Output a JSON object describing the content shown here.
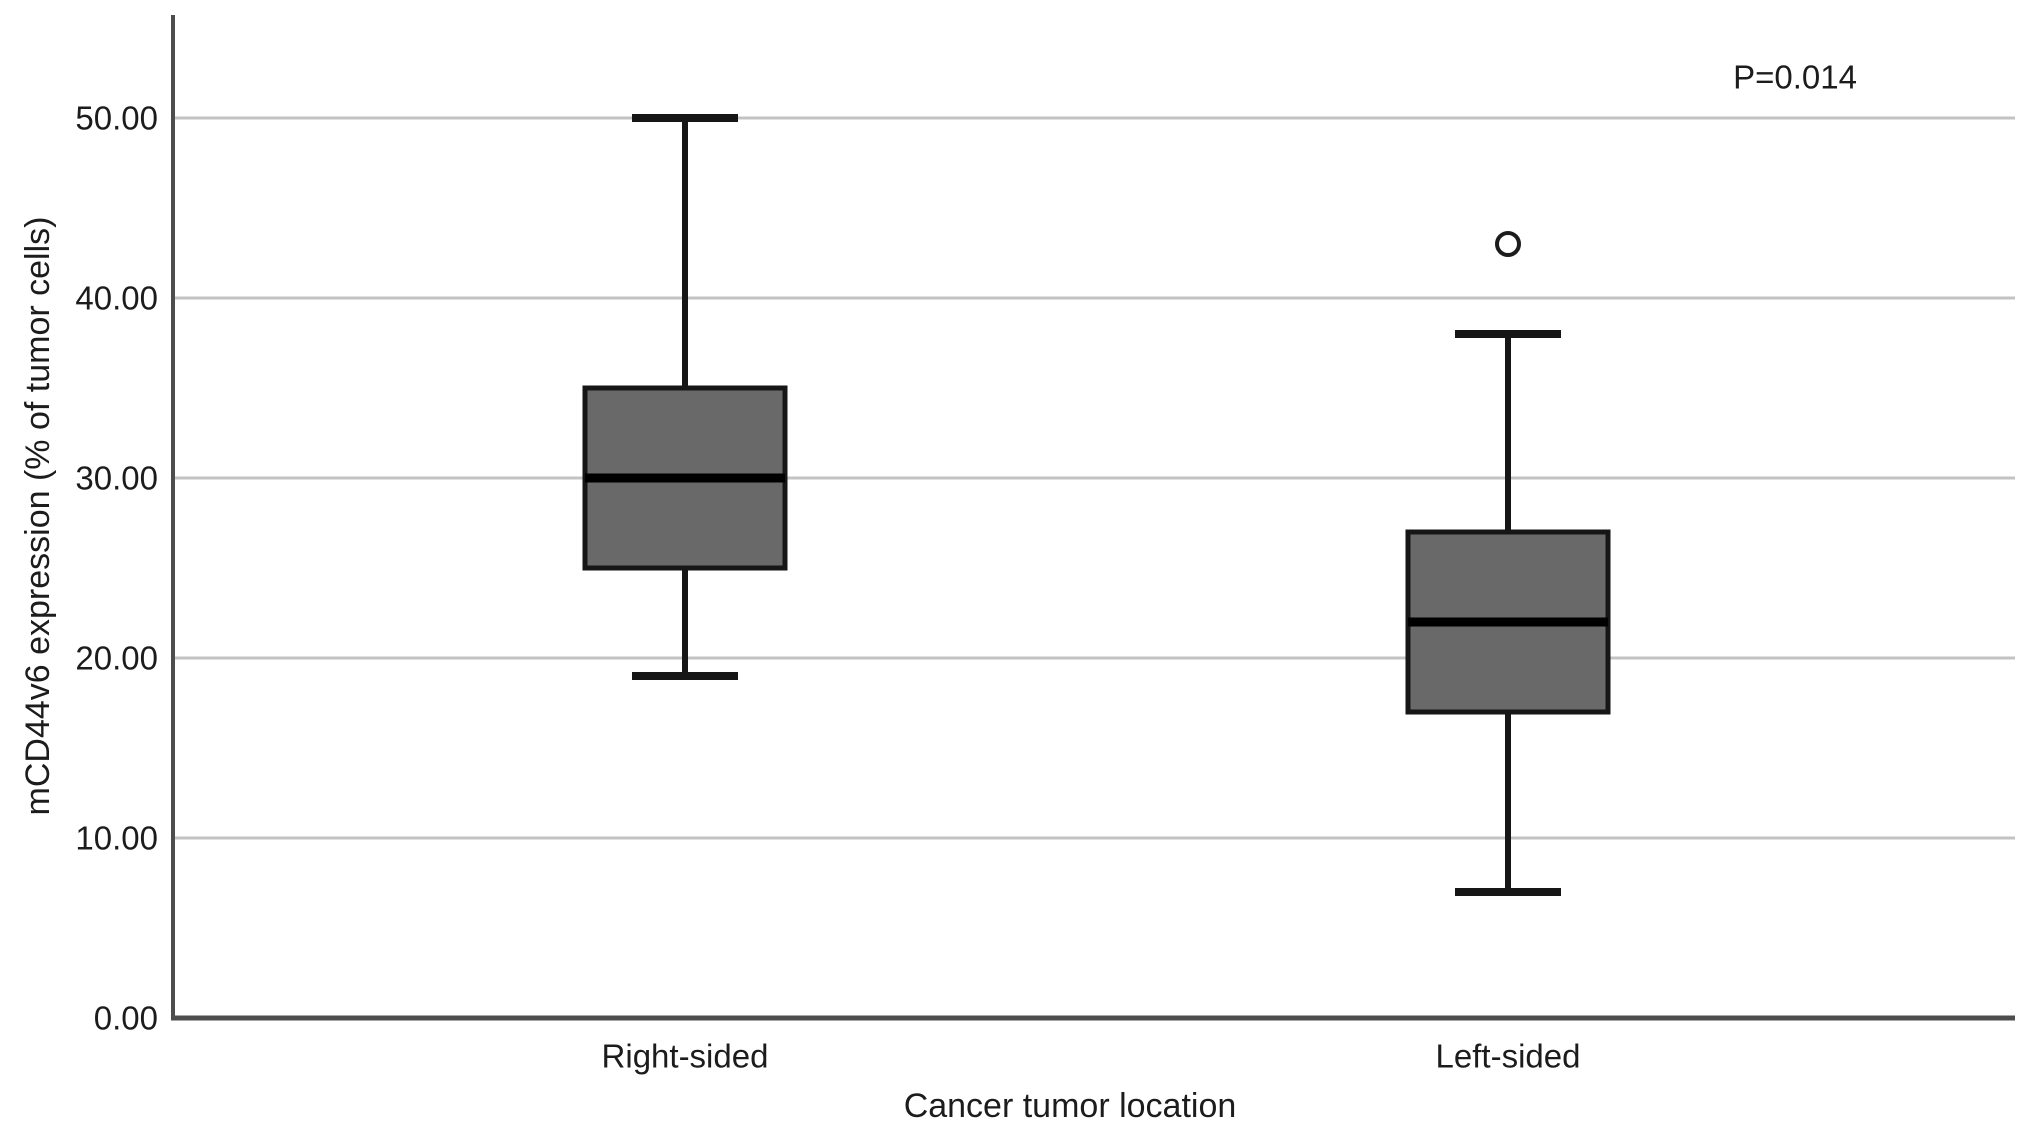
{
  "figure": {
    "kind": "boxplot-figure"
  },
  "chart_data": {
    "type": "box",
    "title": "",
    "xlabel": "Cancer tumor location",
    "ylabel": "mCD44v6 expression (% of tumor cells)",
    "annotation": {
      "text": "P=0.014"
    },
    "categories": [
      "Right-sided",
      "Left-sided"
    ],
    "boxes": [
      {
        "category": "Right-sided",
        "whisker_low": 19,
        "q1": 25,
        "median": 30,
        "q3": 35,
        "whisker_high": 50,
        "outliers": []
      },
      {
        "category": "Left-sided",
        "whisker_low": 7,
        "q1": 17,
        "median": 22,
        "q3": 27,
        "whisker_high": 38,
        "outliers": [
          43
        ]
      }
    ],
    "ylim": [
      0,
      55.7
    ],
    "yticks": [
      0,
      10,
      20,
      30,
      40,
      50
    ],
    "ytick_labels": [
      "0.00",
      "10.00",
      "20.00",
      "30.00",
      "40.00",
      "50.00"
    ],
    "grid": "horizontal",
    "legend": "none",
    "colors": {
      "background": "#ffffff",
      "box_fill": "#696969",
      "box_border": "#161616",
      "median": "#000000",
      "whisker": "#161616",
      "outlier_stroke": "#1c1c1c",
      "gridline": "#c3c3c3",
      "axis": "#4d4d4d",
      "text": "#1c1c1c"
    }
  }
}
